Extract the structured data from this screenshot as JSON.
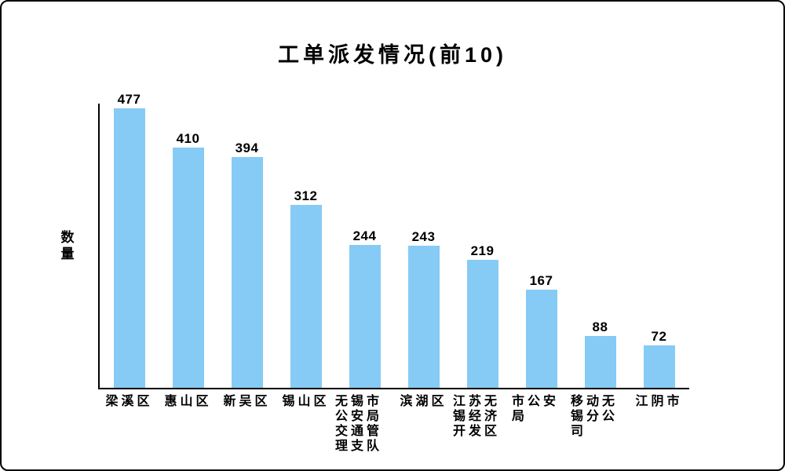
{
  "chart_data": {
    "type": "bar",
    "title": "工单派发情况(前10)",
    "ylabel": "数量",
    "xlabel": "",
    "categories": [
      "梁溪区",
      "惠山区",
      "新吴区",
      "锡山区",
      "无锡市公安局交通管理支队",
      "滨湖区",
      "江苏无锡经济开发区",
      "市公安局",
      "移动无锡分公司",
      "江阴市"
    ],
    "values": [
      477,
      410,
      394,
      312,
      244,
      243,
      219,
      167,
      88,
      72
    ],
    "value_labels_shown": true,
    "ylim": [
      0,
      480
    ],
    "grid": false,
    "legend": "none",
    "colors": {
      "bar": "#86CBF5",
      "axis": "#000000",
      "text": "#000000",
      "background": "#ffffff",
      "frame_border": "#000000"
    }
  }
}
